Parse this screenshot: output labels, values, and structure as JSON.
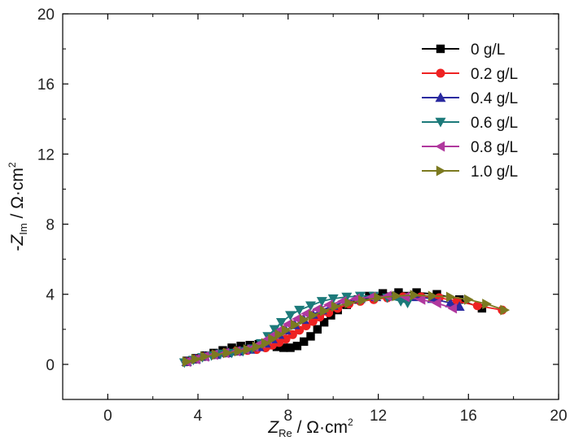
{
  "chart_data": {
    "type": "line",
    "title": "",
    "xlabel": {
      "var": "Z",
      "sub": "Re",
      "unit": " / Ω·cm",
      "sup": "2"
    },
    "ylabel": {
      "prefix": "-",
      "var": "Z",
      "sub": "Im",
      "unit": " / Ω·cm",
      "sup": "2"
    },
    "xlim": [
      -2,
      20
    ],
    "ylim": [
      -2,
      20
    ],
    "xticks": [
      0,
      4,
      8,
      12,
      16,
      20
    ],
    "yticks": [
      0,
      4,
      8,
      12,
      16,
      20
    ],
    "xtick_labels": [
      "0",
      "4",
      "8",
      "12",
      "16",
      "20"
    ],
    "ytick_labels": [
      "0",
      "4",
      "8",
      "12",
      "16",
      "20"
    ],
    "legend_position": "top-right",
    "grid": false,
    "series": [
      {
        "name": "0 g/L",
        "color": "#000000",
        "marker": "square",
        "points": [
          [
            3.5,
            0.2
          ],
          [
            3.9,
            0.35
          ],
          [
            4.3,
            0.5
          ],
          [
            4.7,
            0.65
          ],
          [
            5.1,
            0.8
          ],
          [
            5.5,
            0.95
          ],
          [
            5.9,
            1.05
          ],
          [
            6.3,
            1.1
          ],
          [
            6.7,
            1.15
          ],
          [
            7.1,
            1.1
          ],
          [
            7.5,
            1.0
          ],
          [
            7.8,
            0.95
          ],
          [
            8.1,
            0.95
          ],
          [
            8.4,
            1.05
          ],
          [
            8.7,
            1.3
          ],
          [
            9.0,
            1.6
          ],
          [
            9.3,
            2.0
          ],
          [
            9.6,
            2.4
          ],
          [
            9.9,
            2.8
          ],
          [
            10.2,
            3.1
          ],
          [
            10.6,
            3.4
          ],
          [
            11.1,
            3.7
          ],
          [
            11.6,
            3.9
          ],
          [
            12.2,
            4.05
          ],
          [
            12.9,
            4.1
          ],
          [
            13.7,
            4.1
          ],
          [
            14.6,
            4.0
          ],
          [
            15.6,
            3.7
          ],
          [
            16.6,
            3.2
          ]
        ]
      },
      {
        "name": "0.2 g/L",
        "color": "#ee2222",
        "marker": "circle",
        "points": [
          [
            3.5,
            0.15
          ],
          [
            3.9,
            0.3
          ],
          [
            4.3,
            0.45
          ],
          [
            4.7,
            0.55
          ],
          [
            5.2,
            0.65
          ],
          [
            5.7,
            0.75
          ],
          [
            6.2,
            0.8
          ],
          [
            6.6,
            0.85
          ],
          [
            7.0,
            0.95
          ],
          [
            7.3,
            1.1
          ],
          [
            7.6,
            1.25
          ],
          [
            7.9,
            1.45
          ],
          [
            8.2,
            1.7
          ],
          [
            8.5,
            1.95
          ],
          [
            8.8,
            2.2
          ],
          [
            9.1,
            2.45
          ],
          [
            9.4,
            2.7
          ],
          [
            9.8,
            2.95
          ],
          [
            10.2,
            3.2
          ],
          [
            10.7,
            3.45
          ],
          [
            11.2,
            3.6
          ],
          [
            11.8,
            3.7
          ],
          [
            12.4,
            3.8
          ],
          [
            13.1,
            3.85
          ],
          [
            13.9,
            3.85
          ],
          [
            14.7,
            3.8
          ],
          [
            15.5,
            3.6
          ],
          [
            16.4,
            3.35
          ],
          [
            17.5,
            3.1
          ]
        ]
      },
      {
        "name": "0.4 g/L",
        "color": "#2a2aa0",
        "marker": "triangle-up",
        "points": [
          [
            3.5,
            0.15
          ],
          [
            3.9,
            0.3
          ],
          [
            4.3,
            0.45
          ],
          [
            4.8,
            0.55
          ],
          [
            5.3,
            0.65
          ],
          [
            5.8,
            0.75
          ],
          [
            6.3,
            0.85
          ],
          [
            6.7,
            1.0
          ],
          [
            7.0,
            1.2
          ],
          [
            7.3,
            1.45
          ],
          [
            7.6,
            1.7
          ],
          [
            7.9,
            1.95
          ],
          [
            8.3,
            2.25
          ],
          [
            8.7,
            2.55
          ],
          [
            9.1,
            2.85
          ],
          [
            9.5,
            3.1
          ],
          [
            10.0,
            3.35
          ],
          [
            10.6,
            3.6
          ],
          [
            11.2,
            3.75
          ],
          [
            11.9,
            3.85
          ],
          [
            12.7,
            3.9
          ],
          [
            13.6,
            3.85
          ],
          [
            14.4,
            3.75
          ],
          [
            15.2,
            3.5
          ],
          [
            15.6,
            3.3
          ]
        ]
      },
      {
        "name": "0.6 g/L",
        "color": "#1c7a7a",
        "marker": "triangle-down",
        "points": [
          [
            3.4,
            0.1
          ],
          [
            3.8,
            0.25
          ],
          [
            4.2,
            0.4
          ],
          [
            4.6,
            0.5
          ],
          [
            5.0,
            0.6
          ],
          [
            5.5,
            0.65
          ],
          [
            6.0,
            0.75
          ],
          [
            6.4,
            0.9
          ],
          [
            6.8,
            1.2
          ],
          [
            7.1,
            1.6
          ],
          [
            7.4,
            2.0
          ],
          [
            7.7,
            2.4
          ],
          [
            8.1,
            2.8
          ],
          [
            8.5,
            3.1
          ],
          [
            9.0,
            3.35
          ],
          [
            9.5,
            3.6
          ],
          [
            10.0,
            3.75
          ],
          [
            10.6,
            3.85
          ],
          [
            11.2,
            3.9
          ],
          [
            11.8,
            3.9
          ],
          [
            12.4,
            3.8
          ],
          [
            13.0,
            3.6
          ],
          [
            13.3,
            3.5
          ]
        ]
      },
      {
        "name": "0.8 g/L",
        "color": "#b0389e",
        "marker": "triangle-left",
        "points": [
          [
            3.5,
            0.15
          ],
          [
            3.9,
            0.3
          ],
          [
            4.3,
            0.45
          ],
          [
            4.7,
            0.55
          ],
          [
            5.2,
            0.65
          ],
          [
            5.7,
            0.75
          ],
          [
            6.1,
            0.85
          ],
          [
            6.5,
            1.0
          ],
          [
            6.8,
            1.2
          ],
          [
            7.1,
            1.45
          ],
          [
            7.4,
            1.7
          ],
          [
            7.7,
            2.0
          ],
          [
            8.0,
            2.3
          ],
          [
            8.4,
            2.6
          ],
          [
            8.8,
            2.9
          ],
          [
            9.3,
            3.15
          ],
          [
            9.8,
            3.4
          ],
          [
            10.4,
            3.6
          ],
          [
            11.0,
            3.75
          ],
          [
            11.7,
            3.85
          ],
          [
            12.4,
            3.9
          ],
          [
            13.2,
            3.85
          ],
          [
            13.9,
            3.7
          ],
          [
            14.6,
            3.5
          ],
          [
            15.3,
            3.2
          ]
        ]
      },
      {
        "name": "1.0 g/L",
        "color": "#7c7a20",
        "marker": "triangle-right",
        "points": [
          [
            3.5,
            0.15
          ],
          [
            3.9,
            0.3
          ],
          [
            4.3,
            0.45
          ],
          [
            4.8,
            0.55
          ],
          [
            5.3,
            0.65
          ],
          [
            5.8,
            0.75
          ],
          [
            6.2,
            0.85
          ],
          [
            6.6,
            1.0
          ],
          [
            7.0,
            1.2
          ],
          [
            7.3,
            1.45
          ],
          [
            7.6,
            1.7
          ],
          [
            7.9,
            1.95
          ],
          [
            8.3,
            2.25
          ],
          [
            8.7,
            2.55
          ],
          [
            9.1,
            2.8
          ],
          [
            9.6,
            3.05
          ],
          [
            10.1,
            3.3
          ],
          [
            10.7,
            3.5
          ],
          [
            11.3,
            3.65
          ],
          [
            12.0,
            3.8
          ],
          [
            12.8,
            3.9
          ],
          [
            13.6,
            3.95
          ],
          [
            14.4,
            3.9
          ],
          [
            15.2,
            3.85
          ],
          [
            16.0,
            3.7
          ],
          [
            16.8,
            3.45
          ],
          [
            17.6,
            3.1
          ]
        ]
      }
    ]
  }
}
